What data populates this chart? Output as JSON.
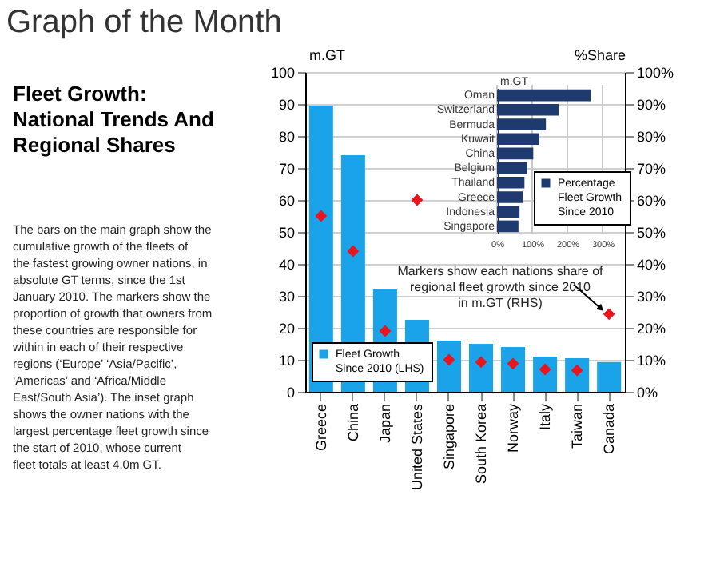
{
  "chart_data": [
    {
      "type": "other",
      "title": "Graph of the Month",
      "subtitle": "Fleet Growth: National Trends And Regional Shares",
      "annotations": [
        "The bars on the main graph show the cumulative growth of the fleets of the fastest growing owner nations, in absolute GT terms, since the 1st January 2010. The markers show the proportion of growth that owners from these countries are responsible for within in each of their respective regions (‘Europe’ ‘Asia/Pacific’, ‘Americas’ and ‘Africa/Middle East/South Asia’). The inset graph shows the owner nations with the largest percentage fleet growth since the start of 2010, whose current fleet totals at least 4.0m GT."
      ]
    },
    {
      "type": "bar",
      "categories": [
        "Greece",
        "China",
        "Japan",
        "United States",
        "Singapore",
        "South Korea",
        "Norway",
        "Italy",
        "Taiwan",
        "Canada"
      ],
      "series": [
        {
          "name": "Fleet Growth Since 2010 (LHS)",
          "color": "#1aa3e8",
          "values": [
            89.5,
            74,
            32,
            22.5,
            16,
            15,
            14,
            11,
            10.5,
            9.3
          ]
        },
        {
          "type": "scatter",
          "axis": "y2",
          "marker": "diamond",
          "color": "#e8141e",
          "values": [
            55,
            44,
            19,
            60,
            10,
            9.3,
            8.8,
            7,
            6.7,
            24.3
          ]
        }
      ],
      "ylabel": "m.GT",
      "y2label": "%Share",
      "ylim": [
        0,
        100
      ],
      "yticks": [
        0,
        10,
        20,
        30,
        40,
        50,
        60,
        70,
        80,
        90,
        100
      ],
      "y2lim": [
        0,
        100
      ],
      "y2ticks": [
        {
          "value": 0,
          "label": "0%"
        },
        {
          "value": 10,
          "label": "10%"
        },
        {
          "value": 20,
          "label": "20%"
        },
        {
          "value": 30,
          "label": "30%"
        },
        {
          "value": 40,
          "label": "40%"
        },
        {
          "value": 50,
          "label": "50%"
        },
        {
          "value": 60,
          "label": "60%"
        },
        {
          "value": 70,
          "label": "70%"
        },
        {
          "value": 80,
          "label": "80%"
        },
        {
          "value": 90,
          "label": "90%"
        },
        {
          "value": 100,
          "label": "100%"
        }
      ],
      "grid": "y",
      "legend": "bottom left",
      "annotations": [
        "Markers show each nations share of regional fleet growth since 2010 in m.GT (RHS)"
      ]
    },
    {
      "type": "bar",
      "orientation": "horizontal",
      "categories": [
        "Oman",
        "Switzerland",
        "Bermuda",
        "Kuwait",
        "China",
        "Belgium",
        "Thailand",
        "Greece",
        "Indonesia",
        "Singapore"
      ],
      "series": [
        {
          "name": "Percentage Fleet Growth Since 2010",
          "color": "#1f3a6e",
          "values": [
            266,
            175,
            139,
            120,
            103,
            86,
            78,
            73,
            64,
            61
          ]
        }
      ],
      "ylabel": "m.GT",
      "xlim": [
        0,
        300
      ],
      "xticks": [
        {
          "value": 0,
          "label": "0%"
        },
        {
          "value": 100,
          "label": "100%"
        },
        {
          "value": 200,
          "label": "200%"
        },
        {
          "value": 300,
          "label": "300%"
        }
      ],
      "grid": "x",
      "legend": "right"
    }
  ]
}
